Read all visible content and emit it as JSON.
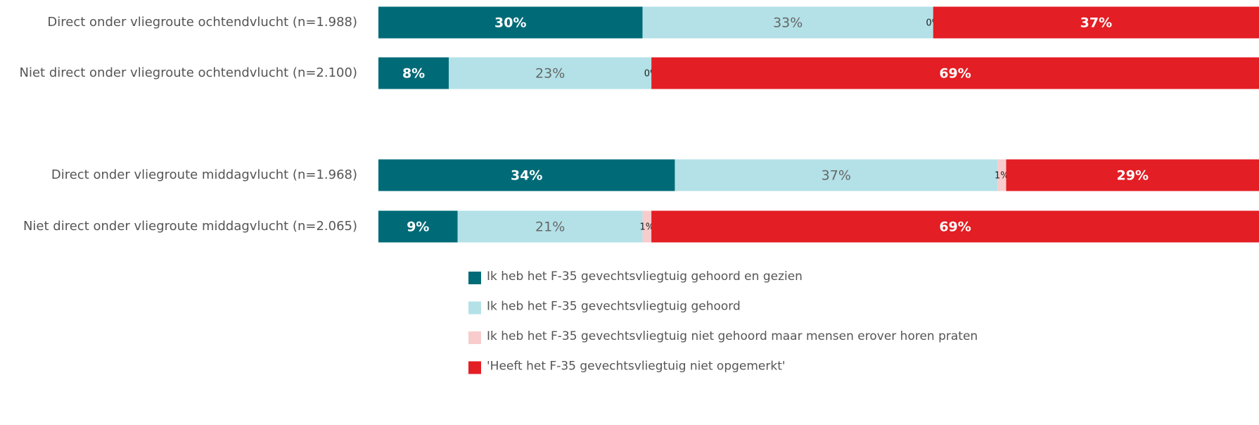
{
  "chart_data": {
    "type": "stacked-bar-horizontal",
    "categories": [
      "Direct onder vliegroute ochtendvlucht (n=1.988)",
      "Niet direct onder vliegroute ochtendvlucht (n=2.100)",
      "Direct onder vliegroute middagvlucht (n=1.968)",
      "Niet direct onder vliegroute middagvlucht (n=2.065)"
    ],
    "series": [
      {
        "name": "Ik heb het F-35 gevechtsvliegtuig gehoord en gezien",
        "color": "#006b77",
        "values": [
          30,
          8,
          34,
          9
        ],
        "value_labels": [
          "30%",
          "8%",
          "34%",
          "9%"
        ]
      },
      {
        "name": "Ik heb het F-35 gevechtsvliegtuig gehoord",
        "color": "#b3e1e7",
        "values": [
          33,
          23,
          37,
          21
        ],
        "value_labels": [
          "33%",
          "23%",
          "37%",
          "21%"
        ]
      },
      {
        "name": "Ik heb het F-35 gevechtsvliegtuig niet gehoord maar mensen erover horen praten",
        "color": "#f8cccc",
        "values": [
          0,
          0,
          1,
          1
        ],
        "value_labels": [
          "0%",
          "0%",
          "1%",
          "1%"
        ]
      },
      {
        "name": "'Heeft het F-35 gevechtsvliegtuig niet opgemerkt'",
        "color": "#e31e24",
        "values": [
          37,
          69,
          29,
          69
        ],
        "value_labels": [
          "37%",
          "69%",
          "29%",
          "69%"
        ]
      }
    ]
  }
}
